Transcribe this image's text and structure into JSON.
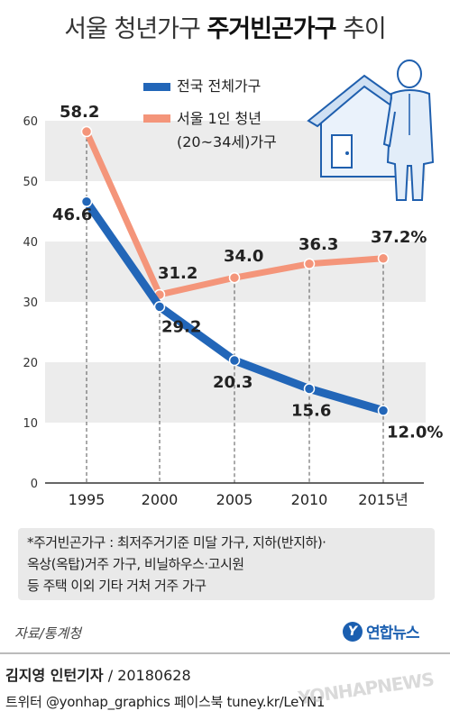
{
  "title": {
    "part1": "서울 청년가구",
    "part2": "주거빈곤가구",
    "part3": "추이"
  },
  "chart_data": {
    "type": "line",
    "x": [
      "1995",
      "2000",
      "2005",
      "2010",
      "2015년"
    ],
    "ylim": [
      0,
      60
    ],
    "yticks": [
      "0",
      "10",
      "20",
      "30",
      "40",
      "50",
      "60"
    ],
    "grid": "horizontal bands",
    "legend_position": "top-right",
    "series": [
      {
        "name": "전국 전체가구",
        "color": "#2266b8",
        "values": [
          46.6,
          29.2,
          20.3,
          15.6,
          12.0
        ],
        "labels": [
          "46.6",
          "29.2",
          "20.3",
          "15.6",
          "12.0%"
        ]
      },
      {
        "name": "서울 1인 청년 (20~34세)가구",
        "name_line1": "서울 1인 청년",
        "name_line2": "(20~34세)가구",
        "color": "#f4957a",
        "values": [
          58.2,
          31.2,
          34.0,
          36.3,
          37.2
        ],
        "labels": [
          "58.2",
          "31.2",
          "34.0",
          "36.3",
          "37.2%"
        ]
      }
    ]
  },
  "note": {
    "line1": "*주거빈곤가구 : 최저주거기준 미달 가구, 지하(반지하)·",
    "line2": "옥상(옥탑)거주 가구, 비닐하우스·고시원",
    "line3": "등 주택 이외 기타 거처 거주 가구"
  },
  "source": "자료/통계청",
  "logo": {
    "mark": "Y",
    "text": "연합뉴스"
  },
  "credit": {
    "name": "김지영 인턴기자",
    "date": " / 20180628"
  },
  "social": "트위터 @yonhap_graphics  페이스북 tuney.kr/LeYN1",
  "watermark": "YONHAPNEWS",
  "colors": {
    "blue": "#2266b8",
    "orange": "#f4957a",
    "band": "#ececec"
  },
  "icons": {
    "illustration": "house-and-man-icon"
  }
}
